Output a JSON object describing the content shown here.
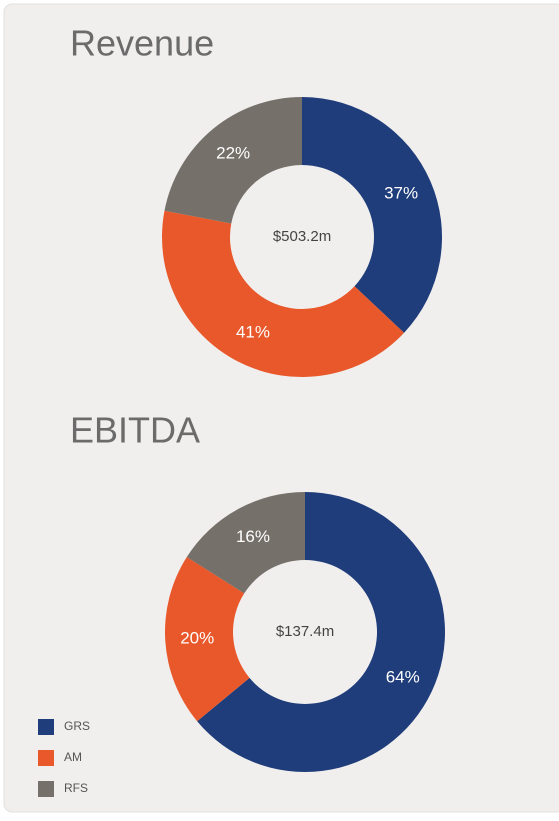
{
  "chart_data": [
    {
      "type": "donut",
      "title": "Revenue",
      "center_label": "$503.2m",
      "values": [
        37,
        41,
        22
      ],
      "value_labels": [
        "37%",
        "41%",
        "22%"
      ]
    },
    {
      "type": "donut",
      "title": "EBITDA",
      "center_label": "$137.4m",
      "values": [
        64,
        20,
        16
      ],
      "value_labels": [
        "64%",
        "20%",
        "16%"
      ]
    }
  ],
  "legend": {
    "items": [
      {
        "name": "GRS",
        "color": "#1f3d7a"
      },
      {
        "name": "AM",
        "color": "#e8582a"
      },
      {
        "name": "RFS",
        "color": "#76706a"
      }
    ]
  }
}
